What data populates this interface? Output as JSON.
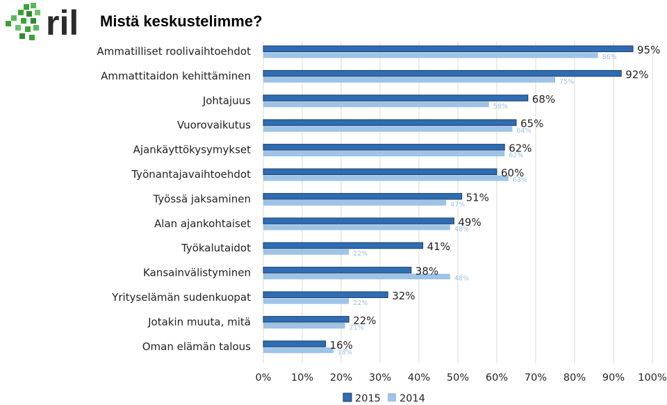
{
  "header": {
    "title": "Mistä keskustelimme?",
    "logo_text": "ril"
  },
  "colors": {
    "series_2015": "#2e6db4",
    "series_2015_border": "#1f3a63",
    "series_2014": "#9dc3e6",
    "gridline": "#d9d9d9",
    "logo_green": "#3aa335",
    "logo_dark": "#2b2b2b"
  },
  "chart_data": {
    "type": "bar",
    "orientation": "horizontal",
    "title": "Mistä keskustelimme?",
    "categories": [
      "Ammatilliset roolivaihtoehdot",
      "Ammattitaidon kehittäminen",
      "Johtajuus",
      "Vuorovaikutus",
      "Ajankäyttökysymykset",
      "Työnantajavaihtoehdot",
      "Työssä jaksaminen",
      "Alan ajankohtaiset",
      "Työkalutaidot",
      "Kansainvälistyminen",
      "Yrityselämän sudenkuopat",
      "Jotakin muuta, mitä",
      "Oman elämän talous"
    ],
    "series": [
      {
        "name": "2015",
        "values": [
          95,
          92,
          68,
          65,
          62,
          60,
          51,
          49,
          41,
          38,
          32,
          22,
          16
        ]
      },
      {
        "name": "2014",
        "values": [
          86,
          75,
          58,
          64,
          62,
          63,
          47,
          48,
          22,
          48,
          22,
          21,
          18
        ]
      }
    ],
    "xlim": [
      0,
      100
    ],
    "ticks": [
      "0%",
      "10%",
      "20%",
      "30%",
      "40%",
      "50%",
      "60%",
      "70%",
      "80%",
      "90%",
      "100%"
    ],
    "grid": true,
    "legend_position": "bottom",
    "value_format": "percent"
  }
}
